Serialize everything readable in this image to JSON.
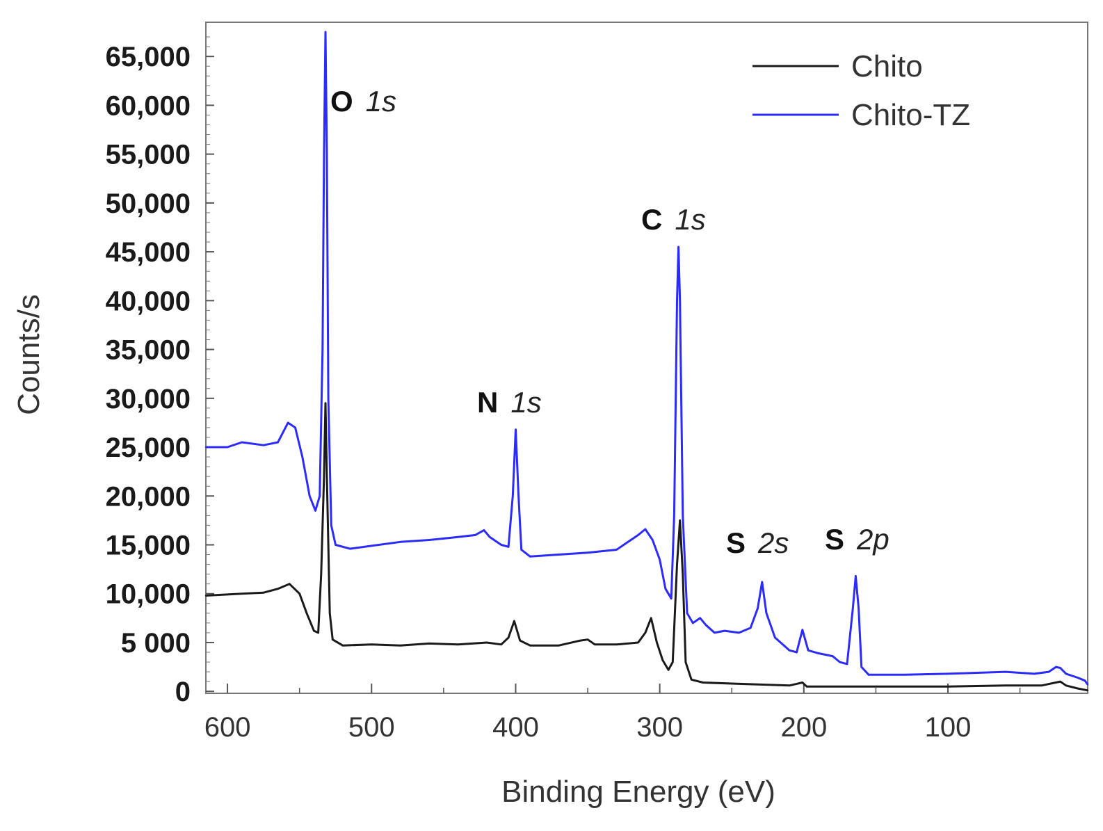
{
  "chart_data": {
    "type": "line",
    "title": "",
    "xlabel": "Binding Energy (eV)",
    "ylabel": "Counts/s",
    "xlim": [
      615,
      3
    ],
    "ylim": [
      -200,
      68500
    ],
    "x_ticks": [
      {
        "value": 600,
        "label": "600"
      },
      {
        "value": 500,
        "label": "500"
      },
      {
        "value": 400,
        "label": "400"
      },
      {
        "value": 300,
        "label": "300"
      },
      {
        "value": 200,
        "label": "200"
      },
      {
        "value": 100,
        "label": "100"
      }
    ],
    "y_ticks": [
      {
        "value": 0,
        "label": "0"
      },
      {
        "value": 5000,
        "label": "5 000"
      },
      {
        "value": 10000,
        "label": "10,000"
      },
      {
        "value": 15000,
        "label": "15,000"
      },
      {
        "value": 20000,
        "label": "20,000"
      },
      {
        "value": 25000,
        "label": "25,000"
      },
      {
        "value": 30000,
        "label": "30,000"
      },
      {
        "value": 35000,
        "label": "35,000"
      },
      {
        "value": 40000,
        "label": "40,000"
      },
      {
        "value": 45000,
        "label": "45,000"
      },
      {
        "value": 50000,
        "label": "50,000"
      },
      {
        "value": 55000,
        "label": "55,000"
      },
      {
        "value": 60000,
        "label": "60,000"
      },
      {
        "value": 65000,
        "label": "65,000"
      }
    ],
    "legend_position": "top-right",
    "series": [
      {
        "name": "Chito",
        "color": "#1a1a1a",
        "points": [
          [
            615,
            9800
          ],
          [
            590,
            10000
          ],
          [
            575,
            10100
          ],
          [
            565,
            10500
          ],
          [
            557,
            11000
          ],
          [
            550,
            10000
          ],
          [
            545,
            8000
          ],
          [
            540,
            6200
          ],
          [
            537,
            6000
          ],
          [
            535,
            12000
          ],
          [
            533,
            22000
          ],
          [
            532,
            29500
          ],
          [
            531,
            22000
          ],
          [
            529,
            8000
          ],
          [
            527,
            5300
          ],
          [
            520,
            4700
          ],
          [
            500,
            4800
          ],
          [
            480,
            4700
          ],
          [
            460,
            4900
          ],
          [
            440,
            4800
          ],
          [
            420,
            5000
          ],
          [
            410,
            4800
          ],
          [
            405,
            5500
          ],
          [
            401,
            7200
          ],
          [
            397,
            5200
          ],
          [
            390,
            4700
          ],
          [
            370,
            4700
          ],
          [
            355,
            5200
          ],
          [
            350,
            5300
          ],
          [
            345,
            4800
          ],
          [
            330,
            4800
          ],
          [
            315,
            5000
          ],
          [
            310,
            6000
          ],
          [
            306,
            7500
          ],
          [
            302,
            5000
          ],
          [
            298,
            3200
          ],
          [
            294,
            2200
          ],
          [
            291,
            3000
          ],
          [
            288,
            13000
          ],
          [
            286,
            17500
          ],
          [
            284,
            12000
          ],
          [
            282,
            3000
          ],
          [
            278,
            1200
          ],
          [
            270,
            900
          ],
          [
            250,
            800
          ],
          [
            230,
            700
          ],
          [
            210,
            600
          ],
          [
            201,
            900
          ],
          [
            198,
            500
          ],
          [
            180,
            500
          ],
          [
            160,
            500
          ],
          [
            140,
            500
          ],
          [
            100,
            500
          ],
          [
            60,
            600
          ],
          [
            35,
            600
          ],
          [
            22,
            1000
          ],
          [
            18,
            600
          ],
          [
            10,
            300
          ],
          [
            3,
            100
          ]
        ]
      },
      {
        "name": "Chito-TZ",
        "color": "#2b2bff",
        "points": [
          [
            615,
            25000
          ],
          [
            600,
            25000
          ],
          [
            590,
            25500
          ],
          [
            575,
            25200
          ],
          [
            565,
            25500
          ],
          [
            558,
            27500
          ],
          [
            553,
            27000
          ],
          [
            548,
            24000
          ],
          [
            543,
            20000
          ],
          [
            539,
            18500
          ],
          [
            536,
            20000
          ],
          [
            534,
            35000
          ],
          [
            533,
            55000
          ],
          [
            532,
            67500
          ],
          [
            531,
            55000
          ],
          [
            530,
            30000
          ],
          [
            528,
            17000
          ],
          [
            525,
            15000
          ],
          [
            515,
            14600
          ],
          [
            500,
            14900
          ],
          [
            480,
            15300
          ],
          [
            460,
            15500
          ],
          [
            440,
            15800
          ],
          [
            428,
            16000
          ],
          [
            422,
            16500
          ],
          [
            418,
            15800
          ],
          [
            410,
            15000
          ],
          [
            405,
            14800
          ],
          [
            402,
            20000
          ],
          [
            400,
            26800
          ],
          [
            398,
            20000
          ],
          [
            396,
            14500
          ],
          [
            390,
            13800
          ],
          [
            370,
            14000
          ],
          [
            350,
            14200
          ],
          [
            330,
            14500
          ],
          [
            315,
            16000
          ],
          [
            310,
            16600
          ],
          [
            305,
            15500
          ],
          [
            300,
            13500
          ],
          [
            296,
            10500
          ],
          [
            292,
            9500
          ],
          [
            290,
            18000
          ],
          [
            288,
            40000
          ],
          [
            287,
            45500
          ],
          [
            286,
            40000
          ],
          [
            284,
            18000
          ],
          [
            281,
            8000
          ],
          [
            277,
            7000
          ],
          [
            272,
            7500
          ],
          [
            268,
            6800
          ],
          [
            262,
            6000
          ],
          [
            255,
            6200
          ],
          [
            245,
            6000
          ],
          [
            237,
            6500
          ],
          [
            232,
            8500
          ],
          [
            229,
            11200
          ],
          [
            226,
            8000
          ],
          [
            220,
            5500
          ],
          [
            210,
            4200
          ],
          [
            205,
            4000
          ],
          [
            201,
            6300
          ],
          [
            197,
            4200
          ],
          [
            190,
            3900
          ],
          [
            180,
            3600
          ],
          [
            175,
            3000
          ],
          [
            170,
            2800
          ],
          [
            166,
            8500
          ],
          [
            164,
            11800
          ],
          [
            162,
            8500
          ],
          [
            160,
            2500
          ],
          [
            155,
            1700
          ],
          [
            130,
            1700
          ],
          [
            100,
            1800
          ],
          [
            80,
            1900
          ],
          [
            60,
            2000
          ],
          [
            40,
            1800
          ],
          [
            30,
            2000
          ],
          [
            25,
            2500
          ],
          [
            22,
            2400
          ],
          [
            18,
            1800
          ],
          [
            10,
            1400
          ],
          [
            5,
            1100
          ],
          [
            3,
            700
          ]
        ]
      }
    ],
    "annotations": [
      {
        "element": "O",
        "orbital": "1s",
        "x": 532,
        "y": 67500
      },
      {
        "element": "N",
        "orbital": "1s",
        "x": 400,
        "y": 26800
      },
      {
        "element": "C",
        "orbital": "1s",
        "x": 287,
        "y": 45500
      },
      {
        "element": "S",
        "orbital": "2s",
        "x": 229,
        "y": 11200
      },
      {
        "element": "S",
        "orbital": "2p",
        "x": 164,
        "y": 11800
      }
    ]
  }
}
